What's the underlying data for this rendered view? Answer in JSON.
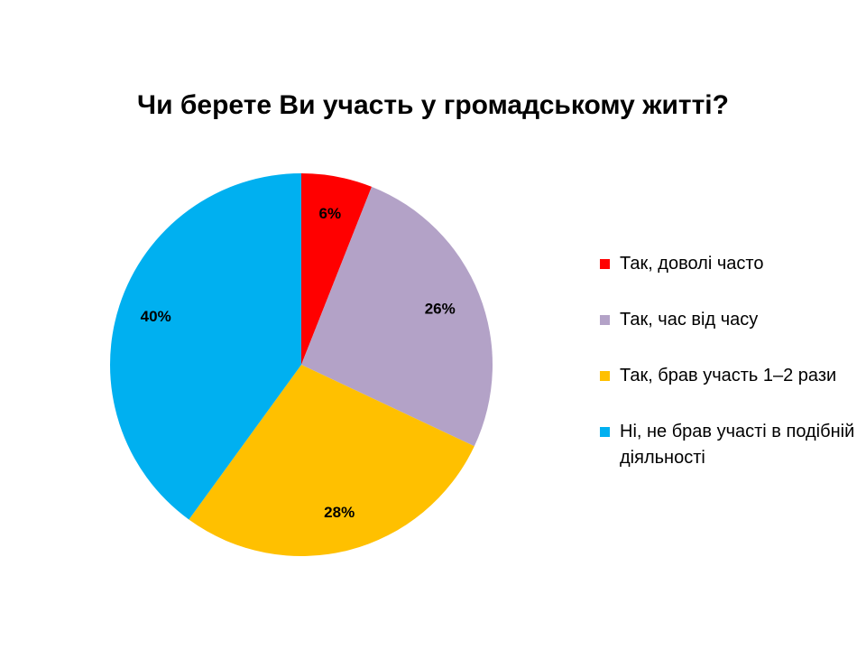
{
  "chart_data": {
    "type": "pie",
    "title": "Чи берете Ви участь у громадському житті?",
    "categories": [
      "Так, доволі часто",
      "Так, час від часу",
      "Так, брав участь 1–2 рази",
      "Ні, не брав участі  в подібній діяльності"
    ],
    "values": [
      6,
      26,
      28,
      40
    ],
    "value_labels": [
      "6%",
      "26%",
      "28%",
      "40%"
    ],
    "colors": [
      "#FF0000",
      "#B3A2C7",
      "#FFC000",
      "#00B0F0"
    ],
    "legend_placement": "right"
  }
}
